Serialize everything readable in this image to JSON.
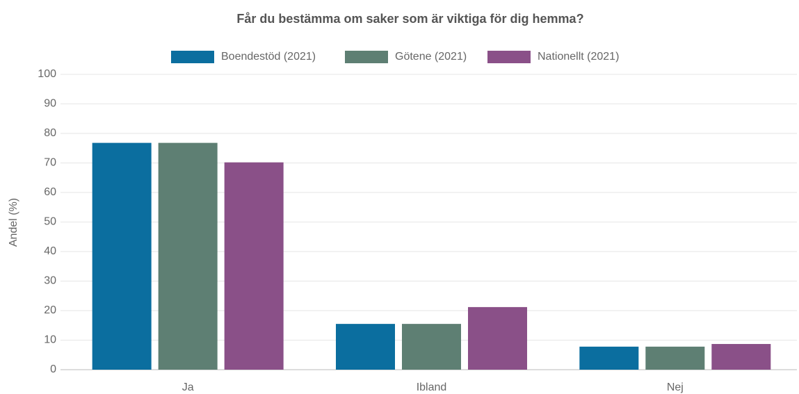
{
  "chart_data": {
    "type": "bar",
    "title": "Får du bestämma om saker som är viktiga för dig hemma?",
    "y_label": "Andel (%)",
    "categories": [
      "Ja",
      "Ibland",
      "Nej"
    ],
    "series": [
      {
        "name": "Boendestöd (2021)",
        "color": "#0b6e9f",
        "values": [
          76.8,
          15.5,
          7.8
        ]
      },
      {
        "name": "Götene (2021)",
        "color": "#5e7f73",
        "values": [
          76.8,
          15.5,
          7.8
        ]
      },
      {
        "name": "Nationellt (2021)",
        "color": "#8a5088",
        "values": [
          70.2,
          21.2,
          8.7
        ]
      }
    ],
    "ylim": [
      0,
      100
    ],
    "yticks": [
      0,
      10,
      20,
      30,
      40,
      50,
      60,
      70,
      80,
      90,
      100
    ],
    "grid": true
  }
}
